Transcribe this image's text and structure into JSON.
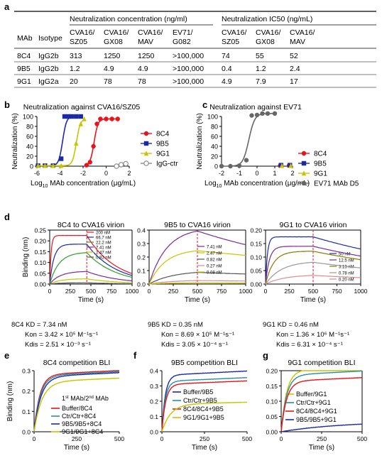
{
  "panel_letters": [
    "a",
    "b",
    "c",
    "d",
    "e",
    "f",
    "g"
  ],
  "table": {
    "group_headers": [
      "Neutralization concentration (ng/ml)",
      "Neutralization IC50 (ng/mL)"
    ],
    "col_mab": "MAb",
    "col_isotype": "Isotype",
    "conc_cols": [
      "CVA16/\nSZ05",
      "CVA16/\nGX08",
      "CVA16/\nMAV",
      "EV71/\nG082"
    ],
    "ic50_cols": [
      "CVA16/\nSZ05",
      "CVA16/\nGX08",
      "CVA16/\nMAV"
    ],
    "rows": [
      {
        "mab": "8C4",
        "isotype": "IgG2b",
        "conc": [
          "313",
          "1250",
          "1250",
          ">100,000"
        ],
        "ic50": [
          "74",
          "55",
          "52"
        ]
      },
      {
        "mab": "9B5",
        "isotype": "IgG2b",
        "conc": [
          "1.2",
          "4.9",
          "4.9",
          ">100,000"
        ],
        "ic50": [
          "0.4",
          "1.2",
          "2.4"
        ]
      },
      {
        "mab": "9G1",
        "isotype": "IgG2a",
        "conc": [
          "20",
          "78",
          "78",
          ">100,000"
        ],
        "ic50": [
          "4.9",
          "7.9",
          "17"
        ]
      }
    ]
  },
  "chart_data": [
    {
      "panel": "b",
      "type": "line",
      "title": "Neutralization against CVA16/SZ05",
      "ylabel": "Neutralization (%)",
      "xlabel": "Log10 MAb concentration (μg/mL)",
      "xlim": [
        -6,
        2
      ],
      "ylim": [
        0,
        100
      ],
      "xticks": [
        "-6",
        "-4",
        "-2",
        "0",
        "2"
      ],
      "yticks": [
        "0",
        "20",
        "40",
        "60",
        "80",
        "100"
      ],
      "legend": "right",
      "series": [
        {
          "name": "8C4",
          "color": "#e8141b",
          "marker": "circle",
          "x": [
            -1.7,
            -1.4,
            -1.1,
            -0.8,
            -0.5,
            0,
            0.5,
            1
          ],
          "y": [
            2,
            8,
            40,
            85,
            95,
            95,
            95,
            95
          ]
        },
        {
          "name": "9B5",
          "color": "#1a2aa6",
          "marker": "square",
          "x": [
            -5.9,
            -5.3,
            -4.6,
            -3.9,
            -3.6,
            -3.3,
            -3,
            -2.6,
            -2.2
          ],
          "y": [
            1,
            1,
            1,
            15,
            100,
            100,
            100,
            100,
            100
          ]
        },
        {
          "name": "9G1",
          "color": "#c7c400",
          "marker": "triangle",
          "x": [
            -5.9,
            -5.3,
            -4.6,
            -3.9,
            -2.6,
            -2.2,
            -1.9
          ],
          "y": [
            1,
            1,
            1,
            1,
            46,
            85,
            95
          ]
        },
        {
          "name": "IgG-ctr",
          "color": "#8a8a8a",
          "marker": "open-circle",
          "x": [
            0.9,
            1.3,
            1.7
          ],
          "y": [
            0,
            3,
            5
          ]
        }
      ]
    },
    {
      "panel": "c",
      "type": "line",
      "title": "Neutralization against EV71",
      "ylabel": "Neutralization (%)",
      "xlabel": "Log10 MAb concentration (μg/mL)",
      "xlim": [
        -2,
        2
      ],
      "ylim": [
        0,
        100
      ],
      "xticks": [
        "-2",
        "-1",
        "0",
        "1",
        "2"
      ],
      "yticks": [
        "0",
        "20",
        "40",
        "60",
        "80",
        "100"
      ],
      "legend": "right",
      "series": [
        {
          "name": "8C4",
          "color": "#e8141b",
          "marker": "circle",
          "x": [
            1.3,
            1.8
          ],
          "y": [
            1,
            1
          ]
        },
        {
          "name": "9B5",
          "color": "#1a2aa6",
          "marker": "square",
          "x": [
            1.35,
            1.85
          ],
          "y": [
            2,
            2
          ]
        },
        {
          "name": "9G1",
          "color": "#c7c400",
          "marker": "triangle",
          "x": [
            1.4,
            1.9
          ],
          "y": [
            1,
            1
          ]
        },
        {
          "name": "EV71 MAb D5",
          "color": "#666666",
          "marker": "circle",
          "x": [
            -2,
            -1.5,
            -1,
            -0.6,
            -0.3,
            0,
            0.3,
            0.6,
            1.0
          ],
          "y": [
            0,
            0,
            1,
            12,
            102,
            103,
            106,
            106,
            106
          ]
        }
      ]
    },
    {
      "panel": "d1",
      "type": "line",
      "title": "8C4 to CVA16 virion",
      "ylabel": "Binding (nm)",
      "xlabel": "Time (s)",
      "xlim": [
        0,
        1000
      ],
      "ylim": [
        0,
        0.25
      ],
      "xticks": [
        "0",
        "250",
        "500",
        "750",
        "1000"
      ],
      "yticks": [
        "0.00",
        "0.05",
        "0.10",
        "0.15",
        "0.20",
        "0.25"
      ],
      "dissociation_at": 450,
      "legend": "top-right",
      "series": [
        {
          "name": "200 nM",
          "color": "#e8141b",
          "plateau": 0.225,
          "ka": 0.06,
          "kd": 0.0028
        },
        {
          "name": "66.7 nM",
          "color": "#1a2aa6",
          "plateau": 0.185,
          "ka": 0.02,
          "kd": 0.0028
        },
        {
          "name": "22.2 nM",
          "color": "#2e9b2e",
          "plateau": 0.148,
          "ka": 0.009,
          "kd": 0.0028
        },
        {
          "name": "7.41 nM",
          "color": "#7a2a9a",
          "plateau": 0.06,
          "ka": 0.008,
          "kd": 0.0025
        },
        {
          "name": "2.47 nM",
          "color": "#c7c400",
          "plateau": 0.025,
          "ka": 0.008,
          "kd": 0.0025
        },
        {
          "name": "0.82 nM",
          "color": "#555555",
          "plateau": 0.006,
          "ka": 0.008,
          "kd": 0.0025
        }
      ],
      "kinetics": [
        "8C4  KD = 7.34 nM",
        "Kon = 3.42 × 10⁵ M⁻¹s⁻¹",
        "Kdis = 2.51 × 10⁻³ s⁻¹"
      ]
    },
    {
      "panel": "d2",
      "type": "line",
      "title": "9B5 to CVA16 virion",
      "xlabel": "Time (s)",
      "xlim": [
        0,
        1000
      ],
      "ylim": [
        0,
        0.4
      ],
      "xticks": [
        "0",
        "250",
        "500",
        "750",
        "1000"
      ],
      "yticks": [
        "0.0",
        "0.1",
        "0.2",
        "0.3",
        "0.4"
      ],
      "dissociation_at": 500,
      "legend": "right",
      "series": [
        {
          "name": "7.41 nM",
          "color": "#7a2a9a",
          "plateau": 0.42,
          "ka": 0.0055,
          "kd": 0.0006
        },
        {
          "name": "2.47 nM",
          "color": "#c7c400",
          "plateau": 0.26,
          "ka": 0.006,
          "kd": 0.0003
        },
        {
          "name": "0.82 nM",
          "color": "#555555",
          "plateau": 0.1,
          "ka": 0.004,
          "kd": 0.0003
        },
        {
          "name": "0.27 nM",
          "color": "#e08a8a",
          "plateau": 0.03,
          "ka": 0.004,
          "kd": 0.0003
        },
        {
          "name": "0.08 nM",
          "color": "#c7c400",
          "plateau": 0.01,
          "ka": 0.004,
          "kd": 0.0003
        }
      ],
      "kinetics": [
        "9B5  KD = 0.35 nM",
        "Kon = 8.69 × 10⁵ M⁻¹s⁻¹",
        "Kdis = 3.05 × 10⁻⁴ s⁻¹"
      ]
    },
    {
      "panel": "d3",
      "type": "line",
      "title": "9G1 to CVA16 virion",
      "xlabel": "Time (s)",
      "xlim": [
        0,
        1000
      ],
      "ylim": [
        0,
        0.2
      ],
      "xticks": [
        "0",
        "250",
        "500",
        "750",
        "1000"
      ],
      "yticks": [
        "0.00",
        "0.05",
        "0.10",
        "0.15",
        "0.20"
      ],
      "dissociation_at": 500,
      "legend": "right",
      "series": [
        {
          "name": "50 nM",
          "color": "#1a2aa6",
          "plateau": 0.175,
          "ka": 0.05,
          "kd": 0.0006
        },
        {
          "name": "12.5 nM",
          "color": "#7a2a9a",
          "plateau": 0.14,
          "ka": 0.025,
          "kd": 0.0006
        },
        {
          "name": "3.13 nM",
          "color": "#8a7a00",
          "plateau": 0.122,
          "ka": 0.012,
          "kd": 0.0006
        },
        {
          "name": "0.78 nM",
          "color": "#999999",
          "plateau": 0.085,
          "ka": 0.006,
          "kd": 0.0006
        },
        {
          "name": "0.20 nM",
          "color": "#e08a8a",
          "plateau": 0.035,
          "ka": 0.005,
          "kd": 0.0006
        }
      ],
      "kinetics": [
        "9G1  KD = 0.46 nM",
        "Kon = 1.36 × 10⁶ M⁻¹s⁻¹",
        "Kdis = 6.31 × 10⁻⁴ s⁻¹"
      ]
    },
    {
      "panel": "e",
      "type": "line",
      "title": "8C4 competition BLI",
      "ylabel": "Binding (nm)",
      "xlabel": "Time (s)",
      "xlim": [
        0,
        500
      ],
      "ylim": [
        0,
        0.3
      ],
      "xticks": [
        "0",
        "250",
        "500"
      ],
      "yticks": [
        "0.0",
        "0.1",
        "0.2",
        "0.3"
      ],
      "legend_title": "1st MAb/2nd MAb",
      "series": [
        {
          "name": "Buffer/8C4",
          "color": "#e8141b",
          "plateau": 0.28,
          "ka": 0.03
        },
        {
          "name": "Ctr/Ctr+8C4",
          "color": "#2a8fa0",
          "plateau": 0.275,
          "ka": 0.028
        },
        {
          "name": "9B5/9B5+8C4",
          "color": "#1a2aa6",
          "plateau": 0.27,
          "ka": 0.025
        },
        {
          "name": "9G1/9G1+8C4",
          "color": "#c7c400",
          "plateau": 0.245,
          "ka": 0.022
        }
      ]
    },
    {
      "panel": "f",
      "type": "line",
      "title": "9B5 competition BLI",
      "xlabel": "Time (s)",
      "xlim": [
        0,
        500
      ],
      "ylim": [
        0,
        0.4
      ],
      "xticks": [
        "0",
        "250",
        "500"
      ],
      "yticks": [
        "0.0",
        "0.1",
        "0.2",
        "0.3",
        "0.4"
      ],
      "series": [
        {
          "name": "Buffer/9B5",
          "color": "#1a2aa6",
          "plateau": 0.37,
          "ka": 0.05
        },
        {
          "name": "Ctr/Ctr+9B5",
          "color": "#2a8fa0",
          "plateau": 0.33,
          "ka": 0.05
        },
        {
          "name": "8C4/8C4+9B5",
          "color": "#e8141b",
          "plateau": 0.31,
          "ka": 0.045
        },
        {
          "name": "9G1/9G1+9B5",
          "color": "#c7c400",
          "plateau": 0.18,
          "ka": 0.02
        }
      ]
    },
    {
      "panel": "g",
      "type": "line",
      "title": "9G1 competition BLI",
      "xlabel": "Time (s)",
      "xlim": [
        0,
        500
      ],
      "ylim": [
        0,
        0.2
      ],
      "xticks": [
        "0",
        "250",
        "500"
      ],
      "yticks": [
        "0.00",
        "0.05",
        "0.10",
        "0.15",
        "0.20"
      ],
      "series": [
        {
          "name": "Buffer/9G1",
          "color": "#c7c400",
          "plateau": 0.2,
          "ka": 0.03
        },
        {
          "name": "Ctr/Ctr+9G1",
          "color": "#2a8fa0",
          "plateau": 0.185,
          "ka": 0.03
        },
        {
          "name": "8C4/8C4+9G1",
          "color": "#e8141b",
          "plateau": 0.165,
          "ka": 0.03
        },
        {
          "name": "9B5/9B5+9G1",
          "color": "#1a2aa6",
          "plateau": 0.03,
          "ka": 0.003
        }
      ]
    }
  ]
}
